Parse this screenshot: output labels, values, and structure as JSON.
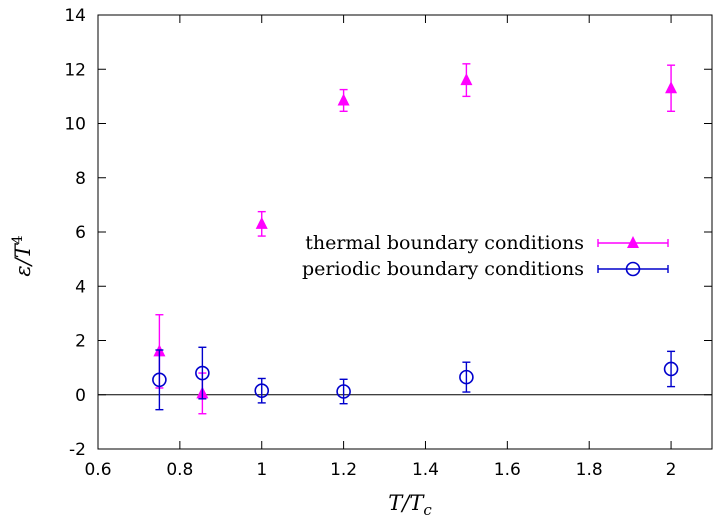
{
  "chart_data": {
    "type": "scatter",
    "xlabel": "T/T_c",
    "ylabel": "ε/T^4",
    "xlim": [
      0.6,
      2.1
    ],
    "ylim": [
      -2,
      14
    ],
    "xticks": [
      "0.6",
      "0.8",
      "1",
      "1.2",
      "1.4",
      "1.6",
      "1.8",
      "2"
    ],
    "yticks": [
      "-2",
      "0",
      "2",
      "4",
      "6",
      "8",
      "10",
      "12",
      "14"
    ],
    "grid": false,
    "zero_line": true,
    "legend_position": "center-right",
    "series": [
      {
        "name": "thermal boundary conditions",
        "marker": "filled-triangle",
        "color": "#ff00ff",
        "points": [
          {
            "x": 0.75,
            "y": 1.6,
            "err": 1.35
          },
          {
            "x": 0.855,
            "y": 0.05,
            "err": 0.75
          },
          {
            "x": 1.0,
            "y": 6.3,
            "err": 0.45
          },
          {
            "x": 1.2,
            "y": 10.85,
            "err": 0.4
          },
          {
            "x": 1.5,
            "y": 11.6,
            "err": 0.6
          },
          {
            "x": 2.0,
            "y": 11.3,
            "err": 0.85
          }
        ]
      },
      {
        "name": "periodic boundary conditions",
        "marker": "open-circle",
        "color": "#0000cc",
        "points": [
          {
            "x": 0.75,
            "y": 0.55,
            "err": 1.1
          },
          {
            "x": 0.855,
            "y": 0.8,
            "err": 0.95
          },
          {
            "x": 1.0,
            "y": 0.15,
            "err": 0.45
          },
          {
            "x": 1.2,
            "y": 0.12,
            "err": 0.45
          },
          {
            "x": 1.5,
            "y": 0.65,
            "err": 0.55
          },
          {
            "x": 2.0,
            "y": 0.95,
            "err": 0.65
          }
        ]
      }
    ]
  }
}
